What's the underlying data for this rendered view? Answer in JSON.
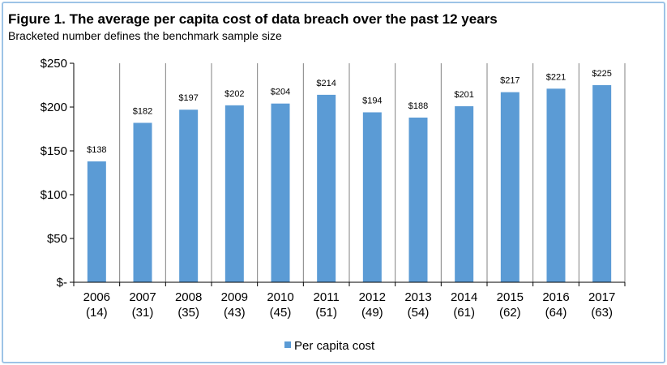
{
  "chart_data": {
    "type": "bar",
    "title": "Figure 1. The average per capita cost of data breach over the past 12 years",
    "subtitle": "Bracketed number defines the benchmark sample size",
    "categories": [
      "2006",
      "2007",
      "2008",
      "2009",
      "2010",
      "2011",
      "2012",
      "2013",
      "2014",
      "2015",
      "2016",
      "2017"
    ],
    "category_sublabels": [
      "(14)",
      "(31)",
      "(35)",
      "(43)",
      "(45)",
      "(51)",
      "(49)",
      "(54)",
      "(61)",
      "(62)",
      "(64)",
      "(63)"
    ],
    "series": [
      {
        "name": "Per capita cost",
        "color": "#5b9bd5",
        "values": [
          138,
          182,
          197,
          202,
          204,
          214,
          194,
          188,
          201,
          217,
          221,
          225
        ],
        "data_labels": [
          "$138",
          "$182",
          "$197",
          "$202",
          "$204",
          "$214",
          "$194",
          "$188",
          "$201",
          "$217",
          "$221",
          "$225"
        ]
      }
    ],
    "ylim": [
      0,
      250
    ],
    "yticks": [
      0,
      50,
      100,
      150,
      200,
      250
    ],
    "ytick_labels": [
      "$-",
      "$50",
      "$100",
      "$150",
      "$200",
      "$250"
    ],
    "xlabel": "",
    "ylabel": "",
    "legend_position": "bottom-center",
    "grid": "vertical-separators"
  },
  "colors": {
    "bar": "#5b9bd5",
    "frame_border": "#9dc3e6",
    "axis": "#000000",
    "separator": "#808080"
  }
}
